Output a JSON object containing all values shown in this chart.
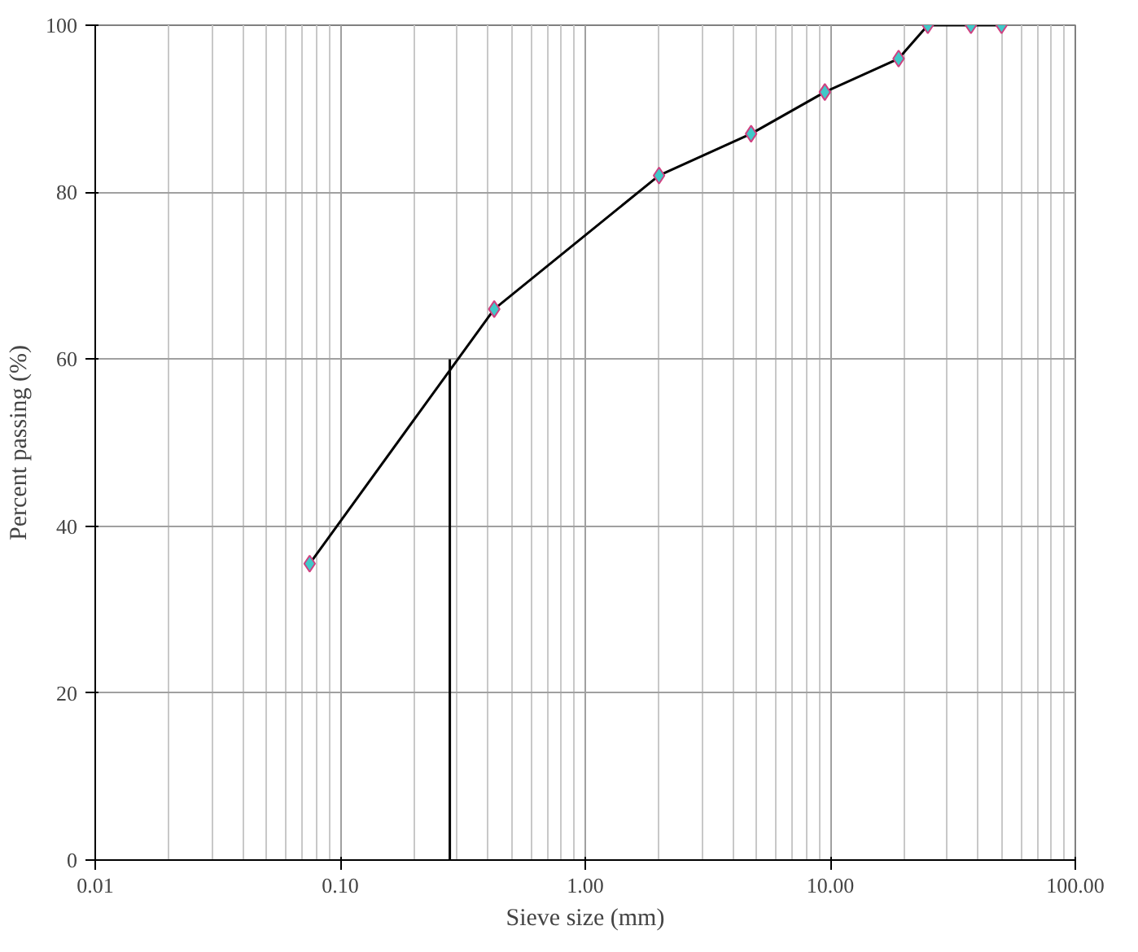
{
  "chart_data": {
    "type": "line",
    "xlabel": "Sieve size (mm)",
    "ylabel": "Percent passing (%)",
    "log": "x",
    "grid": true,
    "xlim": [
      0.01,
      100
    ],
    "ylim": [
      0,
      100
    ],
    "xticks": [
      {
        "value": 0.01,
        "label": "0.01"
      },
      {
        "value": 0.1,
        "label": "0.10"
      },
      {
        "value": 1,
        "label": "1.00"
      },
      {
        "value": 10,
        "label": "10.00"
      },
      {
        "value": 100,
        "label": "100.00"
      }
    ],
    "yticks": [
      0,
      20,
      40,
      60,
      80,
      100
    ],
    "series": [
      {
        "color": "#000000",
        "marker": "none",
        "x": [
          0.075,
          0.425,
          2.0,
          4.75,
          9.5,
          19,
          25,
          37.5,
          50
        ],
        "values": [
          35.5,
          66,
          82,
          87,
          92,
          96,
          100,
          100,
          100
        ]
      },
      {
        "type": "scatter",
        "color": "#40c8c8",
        "marker": "diamond",
        "x": [
          0.075,
          0.425,
          2.0,
          4.75,
          9.5,
          19,
          25,
          37.5,
          50
        ],
        "values": [
          35.5,
          66,
          82,
          87,
          92,
          96,
          100,
          100,
          100
        ]
      },
      {
        "type": "line",
        "color": "#000000",
        "marker": "none",
        "x": [
          0.28,
          0.28
        ],
        "values": [
          0,
          60
        ]
      }
    ]
  }
}
